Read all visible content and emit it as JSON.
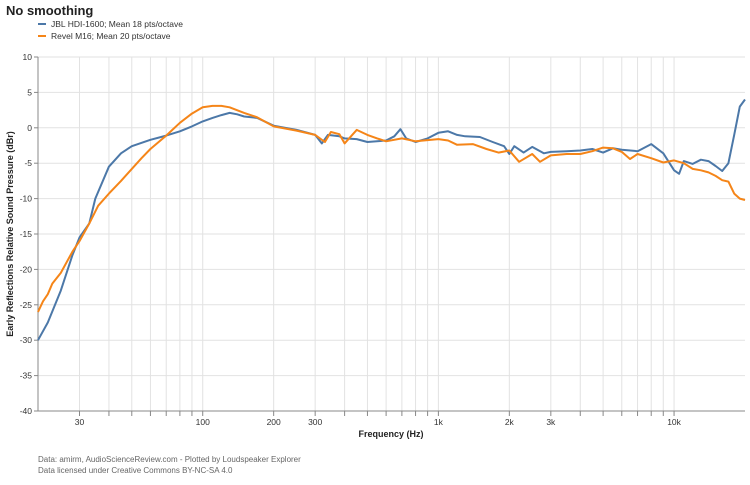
{
  "title": "No smoothing",
  "footer": [
    "Data: amirm, AudioScienceReview.com - Plotted by Loudspeaker Explorer",
    "Data licensed under Creative Commons BY-NC-SA 4.0"
  ],
  "chart_data": {
    "type": "line",
    "title": "No smoothing",
    "xlabel": "Frequency (Hz)",
    "ylabel": "Early Reflections Relative Sound Pressure (dBr)",
    "xscale": "log",
    "xlim": [
      20,
      20000
    ],
    "ylim": [
      -40,
      10
    ],
    "yticks": [
      10,
      5,
      0,
      -5,
      -10,
      -15,
      -20,
      -25,
      -30,
      -35,
      -40
    ],
    "xticks": [
      {
        "v": 30,
        "label": "30"
      },
      {
        "v": 100,
        "label": "100"
      },
      {
        "v": 200,
        "label": "200"
      },
      {
        "v": 300,
        "label": "300"
      },
      {
        "v": 1000,
        "label": "1k"
      },
      {
        "v": 2000,
        "label": "2k"
      },
      {
        "v": 3000,
        "label": "3k"
      },
      {
        "v": 10000,
        "label": "10k"
      }
    ],
    "grid": true,
    "legend_position": "top-left",
    "series": [
      {
        "name": "JBL HDI-1600; Mean 18 pts/octave",
        "color": "#4c78a8",
        "points": [
          [
            20,
            -30
          ],
          [
            22,
            -27.5
          ],
          [
            25,
            -23
          ],
          [
            28,
            -18
          ],
          [
            30,
            -15.5
          ],
          [
            33,
            -13.5
          ],
          [
            35,
            -10
          ],
          [
            40,
            -5.5
          ],
          [
            45,
            -3.6
          ],
          [
            50,
            -2.6
          ],
          [
            60,
            -1.7
          ],
          [
            70,
            -1.1
          ],
          [
            80,
            -0.5
          ],
          [
            90,
            0.2
          ],
          [
            100,
            0.9
          ],
          [
            110,
            1.4
          ],
          [
            120,
            1.8
          ],
          [
            130,
            2.1
          ],
          [
            140,
            1.9
          ],
          [
            150,
            1.6
          ],
          [
            170,
            1.4
          ],
          [
            200,
            0.3
          ],
          [
            250,
            -0.3
          ],
          [
            300,
            -1
          ],
          [
            320,
            -2.2
          ],
          [
            340,
            -1
          ],
          [
            380,
            -1.2
          ],
          [
            400,
            -1.5
          ],
          [
            450,
            -1.6
          ],
          [
            500,
            -2
          ],
          [
            600,
            -1.8
          ],
          [
            650,
            -1.2
          ],
          [
            690,
            -0.2
          ],
          [
            730,
            -1.5
          ],
          [
            800,
            -2
          ],
          [
            900,
            -1.5
          ],
          [
            1000,
            -0.7
          ],
          [
            1100,
            -0.5
          ],
          [
            1200,
            -1.0
          ],
          [
            1300,
            -1.2
          ],
          [
            1500,
            -1.3
          ],
          [
            1700,
            -2
          ],
          [
            1900,
            -2.6
          ],
          [
            2000,
            -3.7
          ],
          [
            2100,
            -2.6
          ],
          [
            2300,
            -3.5
          ],
          [
            2500,
            -2.7
          ],
          [
            2800,
            -3.6
          ],
          [
            3000,
            -3.4
          ],
          [
            3500,
            -3.3
          ],
          [
            4000,
            -3.2
          ],
          [
            4500,
            -3.0
          ],
          [
            5000,
            -3.5
          ],
          [
            5500,
            -2.9
          ],
          [
            6000,
            -3.1
          ],
          [
            7000,
            -3.3
          ],
          [
            8000,
            -2.3
          ],
          [
            9000,
            -3.6
          ],
          [
            10000,
            -6
          ],
          [
            10500,
            -6.5
          ],
          [
            11000,
            -4.7
          ],
          [
            12000,
            -5.1
          ],
          [
            13000,
            -4.5
          ],
          [
            14000,
            -4.7
          ],
          [
            15000,
            -5.4
          ],
          [
            16000,
            -6.1
          ],
          [
            17000,
            -5
          ],
          [
            18000,
            -1
          ],
          [
            19000,
            3
          ],
          [
            20000,
            4
          ]
        ]
      },
      {
        "name": "Revel M16; Mean 20 pts/octave",
        "color": "#f58518",
        "points": [
          [
            20,
            -26
          ],
          [
            21,
            -24.5
          ],
          [
            22,
            -23.5
          ],
          [
            23,
            -22
          ],
          [
            25,
            -20.5
          ],
          [
            28,
            -17.5
          ],
          [
            30,
            -16
          ],
          [
            33,
            -13.5
          ],
          [
            36,
            -11
          ],
          [
            40,
            -9.3
          ],
          [
            45,
            -7.5
          ],
          [
            50,
            -5.8
          ],
          [
            55,
            -4.3
          ],
          [
            60,
            -3
          ],
          [
            70,
            -1.1
          ],
          [
            80,
            0.7
          ],
          [
            90,
            2
          ],
          [
            100,
            2.9
          ],
          [
            110,
            3.1
          ],
          [
            120,
            3.1
          ],
          [
            130,
            2.9
          ],
          [
            150,
            2.1
          ],
          [
            170,
            1.5
          ],
          [
            200,
            0.2
          ],
          [
            250,
            -0.4
          ],
          [
            300,
            -1
          ],
          [
            330,
            -2
          ],
          [
            350,
            -0.6
          ],
          [
            380,
            -0.9
          ],
          [
            400,
            -2.2
          ],
          [
            450,
            -0.3
          ],
          [
            500,
            -1
          ],
          [
            550,
            -1.5
          ],
          [
            600,
            -1.9
          ],
          [
            700,
            -1.5
          ],
          [
            800,
            -1.9
          ],
          [
            1000,
            -1.6
          ],
          [
            1100,
            -1.8
          ],
          [
            1200,
            -2.4
          ],
          [
            1400,
            -2.3
          ],
          [
            1600,
            -3
          ],
          [
            1800,
            -3.5
          ],
          [
            2000,
            -3.2
          ],
          [
            2200,
            -4.8
          ],
          [
            2500,
            -3.7
          ],
          [
            2700,
            -4.8
          ],
          [
            3000,
            -3.9
          ],
          [
            3500,
            -3.7
          ],
          [
            4000,
            -3.7
          ],
          [
            4500,
            -3.3
          ],
          [
            5000,
            -2.8
          ],
          [
            5500,
            -2.9
          ],
          [
            6000,
            -3.4
          ],
          [
            6500,
            -4.4
          ],
          [
            7000,
            -3.7
          ],
          [
            8000,
            -4.3
          ],
          [
            9000,
            -4.9
          ],
          [
            10000,
            -4.6
          ],
          [
            11000,
            -5
          ],
          [
            12000,
            -5.8
          ],
          [
            13000,
            -6
          ],
          [
            14000,
            -6.3
          ],
          [
            15000,
            -6.8
          ],
          [
            16000,
            -7.4
          ],
          [
            17000,
            -7.6
          ],
          [
            18000,
            -9.3
          ],
          [
            19000,
            -10
          ],
          [
            20000,
            -10.2
          ]
        ]
      }
    ]
  }
}
